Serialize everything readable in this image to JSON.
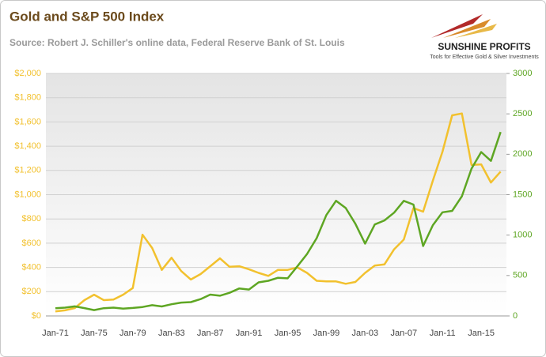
{
  "chart_data": {
    "type": "line",
    "title": "Gold and S&P 500 Index",
    "subtitle": "Source: Robert J. Schiller's online data, Federal Reserve Bank of St. Louis",
    "categories": [
      "Jan-71",
      null,
      null,
      null,
      "Jan-75",
      null,
      null,
      null,
      "Jan-79",
      null,
      null,
      null,
      "Jan-83",
      null,
      null,
      null,
      "Jan-87",
      null,
      null,
      null,
      "Jan-91",
      null,
      null,
      null,
      "Jan-95",
      null,
      null,
      null,
      "Jan-99",
      null,
      null,
      null,
      "Jan-03",
      null,
      null,
      null,
      "Jan-07",
      null,
      null,
      null,
      "Jan-11",
      null,
      null,
      null,
      "Jan-15",
      null,
      null
    ],
    "series": [
      {
        "color": "#f2c12e",
        "values": [
          38,
          46,
          65,
          130,
          175,
          130,
          135,
          175,
          230,
          670,
          560,
          380,
          480,
          370,
          300,
          345,
          410,
          475,
          405,
          410,
          385,
          355,
          330,
          380,
          380,
          400,
          355,
          290,
          285,
          285,
          265,
          280,
          355,
          415,
          425,
          550,
          630,
          890,
          860,
          1115,
          1355,
          1655,
          1670,
          1245,
          1250,
          1100,
          1190
        ]
      },
      {
        "color": "#5ea623",
        "axis": "y2",
        "values": [
          95,
          103,
          118,
          97,
          72,
          96,
          103,
          90,
          99,
          110,
          133,
          117,
          145,
          165,
          171,
          208,
          264,
          250,
          286,
          340,
          326,
          415,
          435,
          472,
          465,
          614,
          766,
          963,
          1248,
          1425,
          1335,
          1140,
          895,
          1132,
          1181,
          1278,
          1424,
          1378,
          865,
          1123,
          1282,
          1300,
          1480,
          1822,
          2028,
          1918,
          2275
        ]
      }
    ],
    "ylim": [
      0,
      2000
    ],
    "yticks": [
      {
        "value": 0,
        "label": "$0"
      },
      {
        "value": 200,
        "label": "$200"
      },
      {
        "value": 400,
        "label": "$400"
      },
      {
        "value": 600,
        "label": "$600"
      },
      {
        "value": 800,
        "label": "$800"
      },
      {
        "value": 1000,
        "label": "$1,000"
      },
      {
        "value": 1200,
        "label": "$1,200"
      },
      {
        "value": 1400,
        "label": "$1,400"
      },
      {
        "value": 1600,
        "label": "$1,600"
      },
      {
        "value": 1800,
        "label": "$1,800"
      },
      {
        "value": 2000,
        "label": "$2,000"
      }
    ],
    "y2lim": [
      0,
      3000
    ],
    "y2ticks": [
      0,
      500,
      1000,
      1500,
      2000,
      2500,
      3000
    ],
    "grid": true
  },
  "logo": {
    "name": "SUNSHINE PROFITS",
    "tagline": "Tools for Effective Gold & Silver Investments"
  }
}
